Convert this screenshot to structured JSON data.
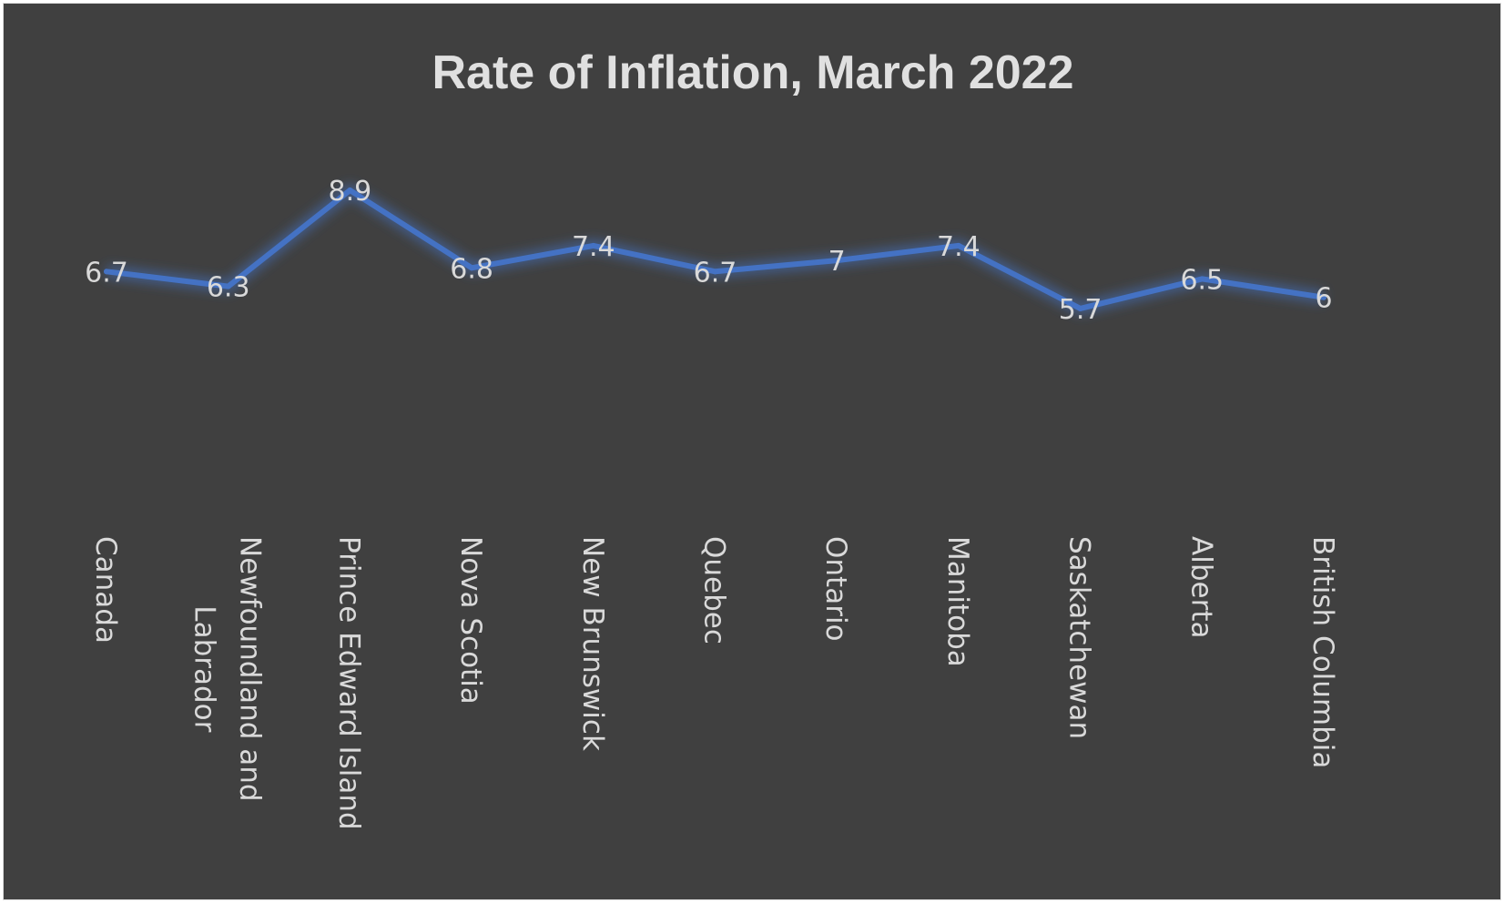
{
  "chart_data": {
    "type": "line",
    "title": "Rate of Inflation, March 2022",
    "categories": [
      "Canada",
      "Newfoundland and Labrador",
      "Prince Edward Island",
      "Nova Scotia",
      "New Brunswick",
      "Quebec",
      "Ontario",
      "Manitoba",
      "Saskatchewan",
      "Alberta",
      "British Columbia"
    ],
    "category_lines": [
      [
        "Canada"
      ],
      [
        "Newfoundland and",
        "Labrador"
      ],
      [
        "Prince Edward Island"
      ],
      [
        "Nova Scotia"
      ],
      [
        "New Brunswick"
      ],
      [
        "Quebec"
      ],
      [
        "Ontario"
      ],
      [
        "Manitoba"
      ],
      [
        "Saskatchewan"
      ],
      [
        "Alberta"
      ],
      [
        "British Columbia"
      ]
    ],
    "series": [
      {
        "values": [
          6.7,
          6.3,
          8.9,
          6.8,
          7.4,
          6.7,
          7,
          7.4,
          5.7,
          6.5,
          6
        ],
        "labels": [
          "6.7",
          "6.3",
          "8.9",
          "6.8",
          "7.4",
          "6.7",
          "7",
          "7.4",
          "5.7",
          "6.5",
          "6"
        ]
      }
    ],
    "xlabel": "",
    "ylabel": "",
    "axes_visible": false,
    "grid": false,
    "legend": "none",
    "colors": {
      "background": "#404040",
      "line": "#4472C4",
      "text": "#d9d9d9",
      "title": "#e0e0e0"
    }
  }
}
